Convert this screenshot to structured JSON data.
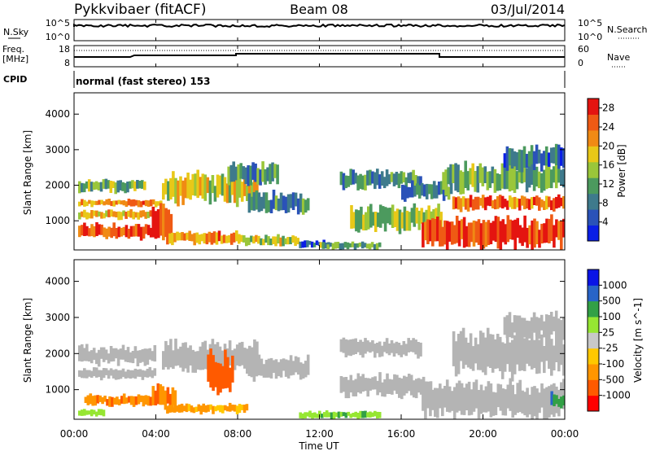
{
  "header": {
    "station": "Pykkvibaer (fitACF)",
    "beam": "Beam 08",
    "date": "03/Jul/2014"
  },
  "panels": {
    "nsky": {
      "left_label": "N.Sky",
      "left_ticks": [
        "10^5",
        "10^0"
      ],
      "right_ticks": [
        "10^5",
        "10^0"
      ],
      "right_label": "N.Search"
    },
    "freq": {
      "left_label_1": "Freq.",
      "left_label_2": "[MHz]",
      "left_ticks": [
        "18",
        "8"
      ],
      "right_ticks": [
        "60",
        "0"
      ],
      "right_label": "Nave"
    },
    "cpid": {
      "label": "CPID",
      "value": "normal (fast stereo) 153"
    }
  },
  "colors": {
    "power_scale": [
      "#0a1ee6",
      "#2a52b8",
      "#3e7a8c",
      "#4c9a5e",
      "#9ac63a",
      "#e8c818",
      "#f08a14",
      "#ef5a14",
      "#e41410"
    ],
    "velocity_scale": [
      "#ff0000",
      "#ff5a00",
      "#ff9600",
      "#ffc800",
      "#c8c8c8",
      "#96e632",
      "#32a046",
      "#2864c8",
      "#0a14e6"
    ],
    "ground_scatter": "#b4b4b4"
  },
  "chart_data": [
    {
      "type": "heatmap",
      "name": "power",
      "xlabel": "Time UT",
      "ylabel": "Slant Range [km]",
      "x_ticks": [
        "00:00",
        "04:00",
        "08:00",
        "12:00",
        "16:00",
        "20:00",
        "00:00"
      ],
      "x_range_hours": [
        0,
        24
      ],
      "ylim": [
        180,
        4600
      ],
      "y_ticks": [
        1000,
        2000,
        3000,
        4000
      ],
      "colorbar_label": "Power [dB]",
      "colorbar_ticks": [
        4,
        8,
        12,
        16,
        20,
        24,
        28
      ],
      "colorbar_range": [
        0,
        30
      ],
      "blobs": [
        {
          "t": [
            0.2,
            4.3
          ],
          "r": [
            500,
            900
          ],
          "v": 26
        },
        {
          "t": [
            0.2,
            4.3
          ],
          "r": [
            1400,
            1600
          ],
          "v": 22
        },
        {
          "t": [
            0.2,
            3.8
          ],
          "r": [
            1050,
            1300
          ],
          "v": 20
        },
        {
          "t": [
            0.2,
            3.5
          ],
          "r": [
            1800,
            2150
          ],
          "v": 14
        },
        {
          "t": [
            3.8,
            4.8
          ],
          "r": [
            400,
            1500
          ],
          "v": 27
        },
        {
          "t": [
            4.3,
            9.0
          ],
          "r": [
            1500,
            2300
          ],
          "v": 18
        },
        {
          "t": [
            4.5,
            8.0
          ],
          "r": [
            350,
            700
          ],
          "v": 22
        },
        {
          "t": [
            8.0,
            11.0
          ],
          "r": [
            300,
            600
          ],
          "v": 16
        },
        {
          "t": [
            8.5,
            11.5
          ],
          "r": [
            1200,
            1800
          ],
          "v": 9
        },
        {
          "t": [
            7.5,
            10.0
          ],
          "r": [
            2000,
            2600
          ],
          "v": 10
        },
        {
          "t": [
            11.0,
            12.5
          ],
          "r": [
            250,
            450
          ],
          "v": 6
        },
        {
          "t": [
            12.0,
            15.0
          ],
          "r": [
            200,
            400
          ],
          "v": 12
        },
        {
          "t": [
            13.5,
            18.0
          ],
          "r": [
            700,
            1400
          ],
          "v": 15
        },
        {
          "t": [
            13.0,
            17.0
          ],
          "r": [
            1900,
            2400
          ],
          "v": 10
        },
        {
          "t": [
            16.0,
            18.5
          ],
          "r": [
            1600,
            2100
          ],
          "v": 9
        },
        {
          "t": [
            17.0,
            24.0
          ],
          "r": [
            200,
            1100
          ],
          "v": 27
        },
        {
          "t": [
            18.5,
            24.0
          ],
          "r": [
            1300,
            1700
          ],
          "v": 24
        },
        {
          "t": [
            18.0,
            24.0
          ],
          "r": [
            1800,
            2600
          ],
          "v": 12
        },
        {
          "t": [
            21.0,
            24.0
          ],
          "r": [
            2400,
            3100
          ],
          "v": 7
        }
      ]
    },
    {
      "type": "heatmap",
      "name": "velocity",
      "xlabel": "Time UT",
      "ylabel": "Slant Range [km]",
      "x_ticks": [
        "00:00",
        "04:00",
        "08:00",
        "12:00",
        "16:00",
        "20:00",
        "00:00"
      ],
      "x_range_hours": [
        0,
        24
      ],
      "ylim": [
        180,
        4600
      ],
      "y_ticks": [
        1000,
        2000,
        3000,
        4000
      ],
      "colorbar_label": "Velocity [m s^-1]",
      "colorbar_ticks": [
        "1000",
        "500",
        "100",
        "25",
        "-25",
        "-100",
        "-500",
        "-1000"
      ],
      "blobs": [
        {
          "t": [
            0.2,
            4.0
          ],
          "r": [
            1700,
            2200
          ],
          "v": "gs"
        },
        {
          "t": [
            0.2,
            4.0
          ],
          "r": [
            1300,
            1600
          ],
          "v": "gs"
        },
        {
          "t": [
            0.5,
            3.8
          ],
          "r": [
            550,
            850
          ],
          "v": -250
        },
        {
          "t": [
            3.8,
            5.0
          ],
          "r": [
            450,
            1100
          ],
          "v": -300
        },
        {
          "t": [
            4.3,
            9.0
          ],
          "r": [
            1500,
            2300
          ],
          "v": "gs"
        },
        {
          "t": [
            4.5,
            8.5
          ],
          "r": [
            350,
            600
          ],
          "v": -120
        },
        {
          "t": [
            6.5,
            7.8
          ],
          "r": [
            900,
            2000
          ],
          "v": -600
        },
        {
          "t": [
            0.2,
            1.5
          ],
          "r": [
            250,
            450
          ],
          "v": 60
        },
        {
          "t": [
            8.5,
            11.5
          ],
          "r": [
            1300,
            1900
          ],
          "v": "gs"
        },
        {
          "t": [
            11.0,
            15.0
          ],
          "r": [
            200,
            400
          ],
          "v": 80
        },
        {
          "t": [
            13.0,
            17.5
          ],
          "r": [
            800,
            1400
          ],
          "v": "gs"
        },
        {
          "t": [
            13.0,
            17.0
          ],
          "r": [
            1900,
            2400
          ],
          "v": "gs"
        },
        {
          "t": [
            17.0,
            24.0
          ],
          "r": [
            250,
            1200
          ],
          "v": "gs"
        },
        {
          "t": [
            18.5,
            24.0
          ],
          "r": [
            1400,
            2600
          ],
          "v": "gs"
        },
        {
          "t": [
            21.0,
            24.0
          ],
          "r": [
            2400,
            3100
          ],
          "v": "gs"
        },
        {
          "t": [
            23.3,
            24.0
          ],
          "r": [
            500,
            900
          ],
          "v": 300
        }
      ]
    }
  ]
}
